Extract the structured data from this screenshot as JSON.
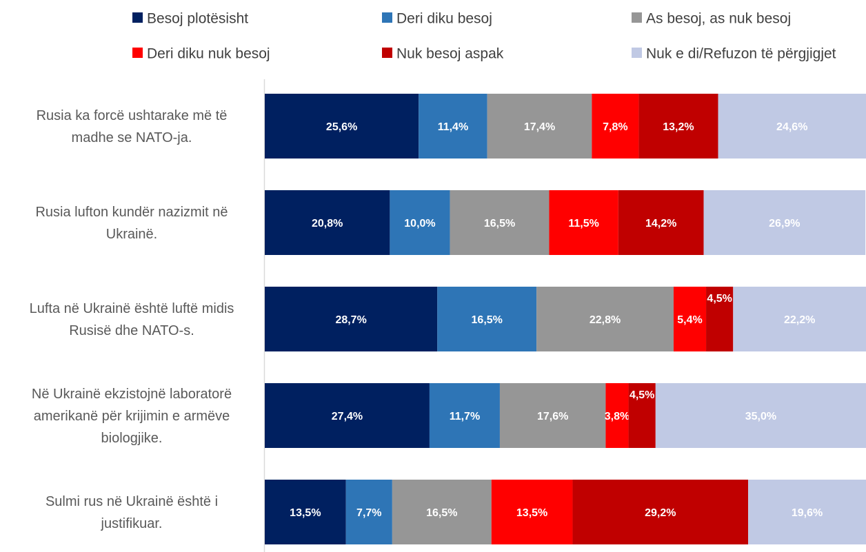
{
  "chart_data": {
    "type": "bar",
    "orientation": "horizontal",
    "stacked": true,
    "title": "",
    "xlabel": "",
    "ylabel": "",
    "xlim": [
      0,
      100
    ],
    "grid": false,
    "legend_position": "top",
    "categories": [
      "Rusia ka forcë ushtarake më të madhe se NATO-ja.",
      "Rusia lufton kundër nazizmit në Ukrainë.",
      "Lufta në Ukrainë është luftë midis Rusisë dhe NATO-s.",
      "Në Ukrainë ekzistojnë laboratorë amerikanë për krijimin e armëve biologjike.",
      "Sulmi rus në Ukrainë është i justifikuar."
    ],
    "category_lines": [
      [
        "Rusia ka forcë ushtarake më të",
        "madhe se NATO-ja."
      ],
      [
        "Rusia lufton kundër nazizmit në",
        "Ukrainë."
      ],
      [
        "Lufta në Ukrainë është luftë midis",
        "Rusisë dhe NATO-s."
      ],
      [
        "Në Ukrainë ekzistojnë laboratorë",
        "amerikanë për krijimin e armëve",
        "biologjike."
      ],
      [
        "Sulmi rus në Ukrainë është i",
        "justifikuar."
      ]
    ],
    "series": [
      {
        "name": "Besoj plotësisht",
        "color": "#002060",
        "values": [
          25.6,
          20.8,
          28.7,
          27.4,
          13.5
        ],
        "labels": [
          "25,6%",
          "20,8%",
          "28,7%",
          "27,4%",
          "13,5%"
        ]
      },
      {
        "name": "Deri diku besoj",
        "color": "#2E75B6",
        "values": [
          11.4,
          10.0,
          16.5,
          11.7,
          7.7
        ],
        "labels": [
          "11,4%",
          "10,0%",
          "16,5%",
          "11,7%",
          "7,7%"
        ]
      },
      {
        "name": "As besoj, as nuk besoj",
        "color": "#969696",
        "values": [
          17.4,
          16.5,
          22.8,
          17.6,
          16.5
        ],
        "labels": [
          "17,4%",
          "16,5%",
          "22,8%",
          "17,6%",
          "16,5%"
        ]
      },
      {
        "name": "Deri diku nuk besoj",
        "color": "#FF0000",
        "values": [
          7.8,
          11.5,
          5.4,
          3.8,
          13.5
        ],
        "labels": [
          "7,8%",
          "11,5%",
          "5,4%",
          "3,8%",
          "13,5%"
        ]
      },
      {
        "name": "Nuk besoj aspak",
        "color": "#C00000",
        "values": [
          13.2,
          14.2,
          4.5,
          4.5,
          29.2
        ],
        "labels": [
          "13,2%",
          "14,2%",
          "4,5%",
          "4,5%",
          "29,2%"
        ]
      },
      {
        "name": "Nuk e di/Refuzon të përgjigjet",
        "color": "#C0C9E4",
        "values": [
          24.6,
          26.9,
          22.2,
          35.0,
          19.6
        ],
        "labels": [
          "24,6%",
          "26,9%",
          "22,2%",
          "35,0%",
          "19,6%"
        ]
      }
    ]
  }
}
